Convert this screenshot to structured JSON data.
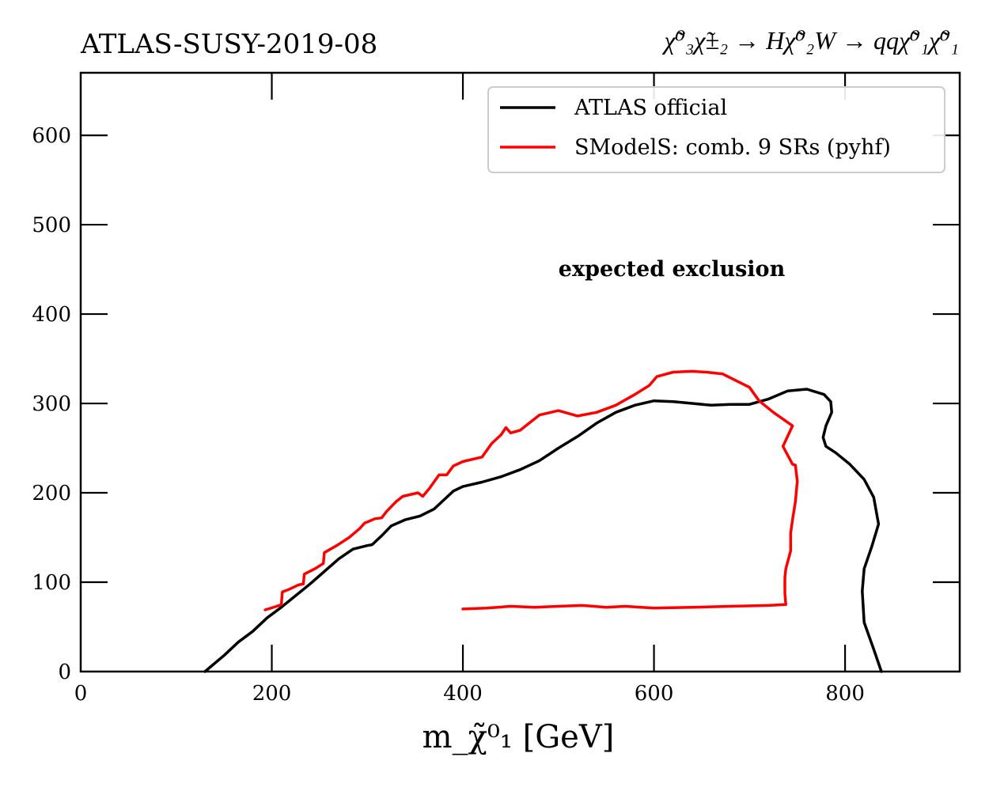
{
  "header": {
    "analysis": "ATLAS-SUSY-2019-08",
    "process": "χ̃⁰₃χ̃±₂ → Hχ̃⁰₂W → qqχ̃⁰₁χ̃⁰₁"
  },
  "chart_data": {
    "type": "line",
    "xlabel": "m_χ̃⁰₁ [GeV]",
    "ylabel": "",
    "xlim": [
      0,
      920
    ],
    "ylim": [
      0,
      670
    ],
    "xticks": [
      0,
      200,
      400,
      600,
      800
    ],
    "yticks": [
      0,
      100,
      200,
      300,
      400,
      500,
      600
    ],
    "grid": false,
    "legend_position": "top-right",
    "annotation": "expected exclusion",
    "series": [
      {
        "name": "ATLAS official",
        "color": "#000000",
        "points": [
          [
            130,
            0
          ],
          [
            150,
            18
          ],
          [
            165,
            33
          ],
          [
            180,
            45
          ],
          [
            195,
            60
          ],
          [
            210,
            72
          ],
          [
            225,
            85
          ],
          [
            240,
            98
          ],
          [
            255,
            112
          ],
          [
            270,
            126
          ],
          [
            285,
            137
          ],
          [
            300,
            141
          ],
          [
            305,
            142
          ],
          [
            315,
            152
          ],
          [
            325,
            163
          ],
          [
            340,
            170
          ],
          [
            355,
            174
          ],
          [
            370,
            182
          ],
          [
            380,
            192
          ],
          [
            390,
            202
          ],
          [
            400,
            207
          ],
          [
            420,
            212
          ],
          [
            440,
            218
          ],
          [
            460,
            226
          ],
          [
            480,
            236
          ],
          [
            500,
            250
          ],
          [
            520,
            263
          ],
          [
            540,
            278
          ],
          [
            560,
            290
          ],
          [
            580,
            298
          ],
          [
            600,
            303
          ],
          [
            620,
            302
          ],
          [
            640,
            300
          ],
          [
            660,
            298
          ],
          [
            680,
            299
          ],
          [
            700,
            299
          ],
          [
            720,
            305
          ],
          [
            740,
            314
          ],
          [
            760,
            316
          ],
          [
            778,
            310
          ],
          [
            785,
            302
          ],
          [
            786,
            290
          ],
          [
            780,
            275
          ],
          [
            777,
            262
          ],
          [
            780,
            252
          ],
          [
            790,
            245
          ],
          [
            805,
            232
          ],
          [
            820,
            215
          ],
          [
            830,
            195
          ],
          [
            835,
            165
          ],
          [
            828,
            140
          ],
          [
            820,
            115
          ],
          [
            818,
            90
          ],
          [
            820,
            55
          ],
          [
            830,
            25
          ],
          [
            838,
            0
          ]
        ]
      },
      {
        "name": "SModelS: comb. 9 SRs (pyhf)",
        "color": "#ff0000",
        "points": [
          [
            193,
            69
          ],
          [
            205,
            73
          ],
          [
            210,
            75
          ],
          [
            211,
            89
          ],
          [
            218,
            92
          ],
          [
            228,
            97
          ],
          [
            233,
            98
          ],
          [
            234,
            109
          ],
          [
            245,
            115
          ],
          [
            254,
            121
          ],
          [
            255,
            133
          ],
          [
            268,
            141
          ],
          [
            281,
            150
          ],
          [
            292,
            160
          ],
          [
            297,
            166
          ],
          [
            308,
            171
          ],
          [
            315,
            172
          ],
          [
            320,
            179
          ],
          [
            330,
            190
          ],
          [
            337,
            196
          ],
          [
            353,
            200
          ],
          [
            358,
            196
          ],
          [
            365,
            205
          ],
          [
            375,
            220
          ],
          [
            383,
            220
          ],
          [
            390,
            230
          ],
          [
            400,
            235
          ],
          [
            420,
            240
          ],
          [
            430,
            255
          ],
          [
            440,
            265
          ],
          [
            445,
            273
          ],
          [
            450,
            267
          ],
          [
            460,
            270
          ],
          [
            480,
            287
          ],
          [
            500,
            292
          ],
          [
            520,
            286
          ],
          [
            540,
            290
          ],
          [
            560,
            298
          ],
          [
            580,
            310
          ],
          [
            595,
            320
          ],
          [
            603,
            330
          ],
          [
            620,
            335
          ],
          [
            640,
            336
          ],
          [
            655,
            335
          ],
          [
            672,
            333
          ],
          [
            700,
            318
          ],
          [
            710,
            303
          ],
          [
            725,
            290
          ],
          [
            745,
            275
          ],
          [
            735,
            252
          ],
          [
            745,
            232
          ],
          [
            748,
            231
          ],
          [
            750,
            213
          ],
          [
            748,
            190
          ],
          [
            745,
            170
          ],
          [
            743,
            155
          ],
          [
            743,
            135
          ],
          [
            738,
            115
          ],
          [
            737,
            105
          ],
          [
            737,
            88
          ],
          [
            738,
            75
          ],
          [
            720,
            74
          ],
          [
            680,
            73
          ],
          [
            640,
            72
          ],
          [
            600,
            71
          ],
          [
            570,
            73
          ],
          [
            550,
            72
          ],
          [
            525,
            74
          ],
          [
            500,
            73
          ],
          [
            475,
            72
          ],
          [
            450,
            73
          ],
          [
            425,
            71
          ],
          [
            400,
            70
          ]
        ]
      }
    ]
  }
}
